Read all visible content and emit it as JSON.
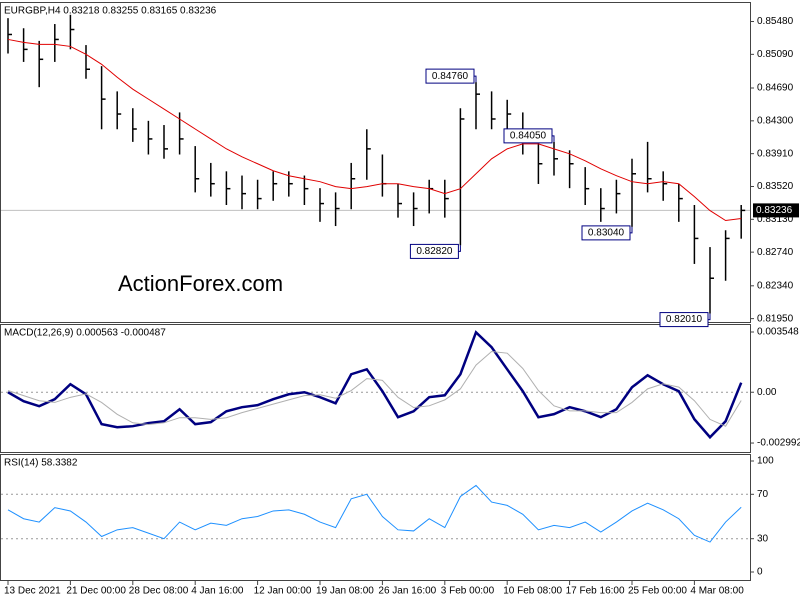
{
  "chart_data": [
    {
      "type": "ohlc",
      "title": "EURGBP,H4  0.83218 0.83255 0.83165 0.83236",
      "watermark": "ActionForex.com",
      "categories": [
        "13 Dec 2021",
        null,
        null,
        null,
        "21 Dec 00:00",
        null,
        null,
        null,
        "28 Dec 08:00",
        null,
        null,
        null,
        "4 Jan 16:00",
        null,
        null,
        null,
        "12 Jan 00:00",
        null,
        null,
        null,
        "19 Jan 08:00",
        null,
        null,
        null,
        "26 Jan 16:00",
        null,
        null,
        null,
        "3 Feb 00:00",
        null,
        null,
        null,
        "10 Feb 08:00",
        null,
        null,
        null,
        "17 Feb 16:00",
        null,
        null,
        null,
        "25 Feb 00:00",
        null,
        null,
        null,
        "4 Mar 08:00",
        null,
        null,
        null
      ],
      "color": "#000000",
      "high": [
        0.8552,
        0.854,
        0.8525,
        0.8545,
        0.8556,
        0.852,
        0.8495,
        0.8465,
        0.8445,
        0.843,
        0.8425,
        0.844,
        0.84,
        0.838,
        0.837,
        0.8365,
        0.836,
        0.837,
        0.837,
        0.8365,
        0.835,
        0.8345,
        0.838,
        0.842,
        0.839,
        0.8355,
        0.8345,
        0.836,
        0.836,
        0.8445,
        0.8476,
        0.8465,
        0.8455,
        0.844,
        0.841,
        0.8405,
        0.8395,
        0.8375,
        0.835,
        0.836,
        0.8385,
        0.8405,
        0.837,
        0.8355,
        0.833,
        0.828,
        0.83,
        0.833
      ],
      "low": [
        0.851,
        0.85,
        0.847,
        0.85,
        0.8515,
        0.848,
        0.842,
        0.842,
        0.8405,
        0.839,
        0.8385,
        0.839,
        0.8345,
        0.834,
        0.833,
        0.8325,
        0.8325,
        0.8335,
        0.834,
        0.833,
        0.831,
        0.8305,
        0.8325,
        0.836,
        0.834,
        0.8315,
        0.8305,
        0.832,
        0.8315,
        0.8282,
        0.842,
        0.842,
        0.841,
        0.839,
        0.8355,
        0.8365,
        0.835,
        0.833,
        0.831,
        0.832,
        0.8304,
        0.8345,
        0.8335,
        0.831,
        0.826,
        0.8201,
        0.824,
        0.829
      ],
      "close": [
        0.85326,
        0.85149,
        0.85031,
        0.85267,
        0.85385,
        0.84913,
        0.84558,
        0.84381,
        0.84203,
        0.84085,
        0.83967,
        0.84085,
        0.83612,
        0.83553,
        0.83494,
        0.83435,
        0.83376,
        0.83553,
        0.83553,
        0.83494,
        0.83317,
        0.83258,
        0.83612,
        0.83967,
        0.83553,
        0.83317,
        0.83258,
        0.83494,
        0.83376,
        0.84322,
        0.84617,
        0.84322,
        0.84381,
        0.84085,
        0.8379,
        0.83849,
        0.8379,
        0.83494,
        0.83258,
        0.83435,
        0.83671,
        0.83612,
        0.83553,
        0.83376,
        0.82903,
        0.8243,
        0.82903,
        0.83236
      ],
      "overlay": {
        "color": "#e00000",
        "values": [
          0.85267,
          0.85232,
          0.85208,
          0.85208,
          0.85184,
          0.8509,
          0.84972,
          0.84818,
          0.84676,
          0.84558,
          0.8444,
          0.84322,
          0.84203,
          0.84085,
          0.83967,
          0.83872,
          0.8379,
          0.83707,
          0.83648,
          0.83612,
          0.83577,
          0.83518,
          0.83494,
          0.83518,
          0.83553,
          0.83553,
          0.83518,
          0.83494,
          0.83435,
          0.83494,
          0.83671,
          0.83849,
          0.83967,
          0.84026,
          0.84026,
          0.83967,
          0.83908,
          0.83825,
          0.8373,
          0.83648,
          0.83577,
          0.83553,
          0.83577,
          0.83553,
          0.834,
          0.83234,
          0.83116,
          0.8314
        ]
      },
      "current_price": 0.83236,
      "annotations": [
        {
          "value": 0.8476,
          "label": "0.84760"
        },
        {
          "value": 0.8282,
          "label": "0.82820"
        },
        {
          "value": 0.8304,
          "label": "0.83040"
        },
        {
          "value": 0.8405,
          "label": "0.84050"
        },
        {
          "value": 0.8201,
          "label": "0.82010"
        }
      ],
      "ylim": [
        0.8191,
        0.857
      ],
      "yticks": [
        {
          "value": 0.8548,
          "label": "0.85480"
        },
        {
          "value": 0.8509,
          "label": "0.85090"
        },
        {
          "value": 0.8469,
          "label": "0.84690"
        },
        {
          "value": 0.843,
          "label": "0.84300"
        },
        {
          "value": 0.8391,
          "label": "0.83910"
        },
        {
          "value": 0.8352,
          "label": "0.83520"
        },
        {
          "value": 0.8313,
          "label": "0.83130"
        },
        {
          "value": 0.8274,
          "label": "0.82740"
        },
        {
          "value": 0.8234,
          "label": "0.82340"
        },
        {
          "value": 0.8195,
          "label": "0.81950"
        }
      ]
    },
    {
      "type": "line",
      "title": "MACD(12,26,9) 0.000563 -0.000487",
      "series": [
        {
          "color": "#000080",
          "width": 2.5,
          "values": [
            0,
            -0.00053,
            -0.00082,
            -0.00041,
            0.00047,
            -0.00012,
            -0.00188,
            -0.00206,
            -0.002,
            -0.00182,
            -0.00171,
            -0.001,
            -0.00188,
            -0.00176,
            -0.00112,
            -0.00088,
            -0.00076,
            -0.00041,
            -0.00012,
            0,
            -0.00029,
            -0.00065,
            0.00106,
            0.00135,
            6e-05,
            -0.00147,
            -0.00112,
            -0.00029,
            -0.00018,
            0.00106,
            0.00353,
            0.00265,
            0.00135,
            6e-05,
            -0.00147,
            -0.00129,
            -0.00088,
            -0.00112,
            -0.00147,
            -0.001,
            0.00029,
            0.001,
            0.00047,
            6e-05,
            -0.00159,
            -0.00265,
            -0.00171,
            0.000563
          ]
        },
        {
          "color": "#b0b0b0",
          "width": 1,
          "values": [
            0.0001,
            -0.0002,
            -0.0005,
            -0.0006,
            -0.0003,
            -0.0001,
            -0.0006,
            -0.0013,
            -0.0018,
            -0.0019,
            -0.0018,
            -0.0015,
            -0.0015,
            -0.0016,
            -0.0015,
            -0.0012,
            -0.00095,
            -0.0007,
            -0.00045,
            -0.0002,
            -0.00015,
            -0.00035,
            0.0001,
            0.0008,
            0.0007,
            -0.0003,
            -0.0009,
            -0.0008,
            -0.00045,
            0.0002,
            0.0016,
            0.0024,
            0.0023,
            0.0014,
            0.0001,
            -0.0008,
            -0.0011,
            -0.0011,
            -0.0012,
            -0.0012,
            -0.0006,
            0.0002,
            0.0005,
            0.0003,
            -0.0005,
            -0.0016,
            -0.002,
            -0.000487
          ]
        }
      ],
      "levels": [
        0
      ],
      "ylim": [
        -0.00352,
        0.00396
      ],
      "yticks": [
        0.003548,
        {
          "value": 0,
          "label": "0.00"
        },
        -0.002992
      ]
    },
    {
      "type": "line",
      "title": "RSI(14) 58.3382",
      "series": [
        {
          "color": "#1e90ff",
          "width": 1,
          "values": [
            56,
            48,
            45,
            58,
            55,
            45,
            32,
            38,
            40,
            35,
            30,
            45,
            38,
            44,
            42,
            48,
            50,
            55,
            56,
            52,
            45,
            40,
            66,
            70,
            50,
            38,
            37,
            48,
            40,
            68,
            78,
            63,
            60,
            52,
            38,
            42,
            40,
            45,
            36,
            45,
            55,
            62,
            56,
            48,
            33,
            27,
            45,
            58.3382
          ]
        }
      ],
      "levels": [
        70,
        30
      ],
      "ylim": [
        -7.2,
        105.4
      ],
      "yticks": [
        100,
        70,
        30,
        0
      ]
    }
  ]
}
